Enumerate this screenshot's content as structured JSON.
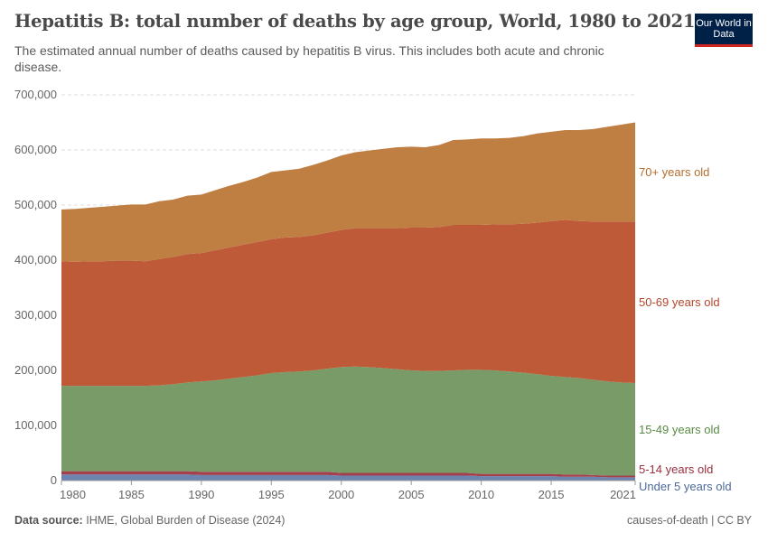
{
  "header": {
    "title": "Hepatitis B: total number of deaths by age group, World, 1980 to 2021",
    "subtitle": "The estimated annual number of deaths caused by hepatitis B virus. This includes both acute and chronic disease.",
    "logo": "Our World in Data"
  },
  "footer": {
    "source_label": "Data source:",
    "source": "IHME, Global Burden of Disease (2024)",
    "right": "causes-of-death | CC BY"
  },
  "chart_data": {
    "type": "area",
    "stacked": true,
    "title": "Hepatitis B: total number of deaths by age group, World, 1980 to 2021",
    "xlim": [
      1980,
      2021
    ],
    "ylim": [
      0,
      700000
    ],
    "grid": "horizontal dashed",
    "legend": "right, inline labels",
    "x_ticks": [
      "1980",
      "1985",
      "1990",
      "1995",
      "2000",
      "2005",
      "2010",
      "2015",
      "2021"
    ],
    "y_ticks": [
      "0",
      "100,000",
      "200,000",
      "300,000",
      "400,000",
      "500,000",
      "600,000",
      "700,000"
    ],
    "x": [
      1980,
      1981,
      1982,
      1983,
      1984,
      1985,
      1986,
      1987,
      1988,
      1989,
      1990,
      1991,
      1992,
      1993,
      1994,
      1995,
      1996,
      1997,
      1998,
      1999,
      2000,
      2001,
      2002,
      2003,
      2004,
      2005,
      2006,
      2007,
      2008,
      2009,
      2010,
      2011,
      2012,
      2013,
      2014,
      2015,
      2016,
      2017,
      2018,
      2019,
      2020,
      2021
    ],
    "series": [
      {
        "name": "Under 5 years old",
        "color": "#6D84B0",
        "label_color": "#4c6a9c",
        "values": [
          11000,
          11000,
          11000,
          11000,
          11000,
          11000,
          11000,
          11000,
          11000,
          11000,
          10000,
          10000,
          10000,
          10000,
          10000,
          10000,
          10000,
          10000,
          10000,
          10000,
          9000,
          9000,
          9000,
          9000,
          9000,
          9000,
          9000,
          9000,
          9000,
          9000,
          8000,
          8000,
          8000,
          8000,
          8000,
          8000,
          7000,
          7000,
          7000,
          6000,
          6000,
          6000
        ]
      },
      {
        "name": "5-14 years old",
        "color": "#A2404C",
        "label_color": "#9a2f3e",
        "values": [
          6000,
          6000,
          6000,
          6000,
          6000,
          6000,
          6000,
          6000,
          6000,
          6000,
          6000,
          6000,
          6000,
          6000,
          6000,
          6000,
          6000,
          6000,
          6000,
          6000,
          5000,
          5000,
          5000,
          5000,
          5000,
          5000,
          5000,
          5000,
          5000,
          5000,
          4000,
          4000,
          4000,
          4000,
          4000,
          4000,
          4000,
          4000,
          3000,
          3000,
          3000,
          3000
        ]
      },
      {
        "name": "15-49 years old",
        "color": "#789B68",
        "label_color": "#5a8a45",
        "values": [
          155000,
          155000,
          155000,
          155000,
          155000,
          155000,
          155000,
          156000,
          158000,
          161000,
          164000,
          166000,
          169000,
          172000,
          175000,
          179000,
          181000,
          182000,
          184000,
          187000,
          192000,
          193000,
          192000,
          190000,
          188000,
          186000,
          185000,
          185000,
          186000,
          187000,
          189000,
          188000,
          186000,
          184000,
          181000,
          178000,
          177000,
          175000,
          173000,
          171000,
          169000,
          168000
        ]
      },
      {
        "name": "50-69 years old",
        "color": "#BE5A37",
        "label_color": "#b4472c",
        "values": [
          226000,
          225000,
          226000,
          226000,
          227000,
          227000,
          226000,
          229000,
          231000,
          233000,
          233000,
          236000,
          238000,
          240000,
          242000,
          243000,
          244000,
          244000,
          245000,
          247000,
          249000,
          251000,
          252000,
          254000,
          256000,
          259000,
          260000,
          261000,
          264000,
          263000,
          263000,
          265000,
          267000,
          270000,
          275000,
          281000,
          285000,
          285000,
          287000,
          290000,
          292000,
          293000
        ]
      },
      {
        "name": "70+ years old",
        "color": "#BF7E42",
        "label_color": "#b46d2d",
        "values": [
          94000,
          96000,
          97000,
          99000,
          100000,
          102000,
          103000,
          105000,
          104000,
          106000,
          106000,
          109000,
          112000,
          114000,
          117000,
          122000,
          122000,
          124000,
          128000,
          131000,
          135000,
          138000,
          141000,
          144000,
          147000,
          147000,
          146000,
          149000,
          154000,
          155000,
          157000,
          156000,
          157000,
          159000,
          162000,
          162000,
          163000,
          165000,
          168000,
          172000,
          176000,
          180000
        ]
      }
    ]
  }
}
